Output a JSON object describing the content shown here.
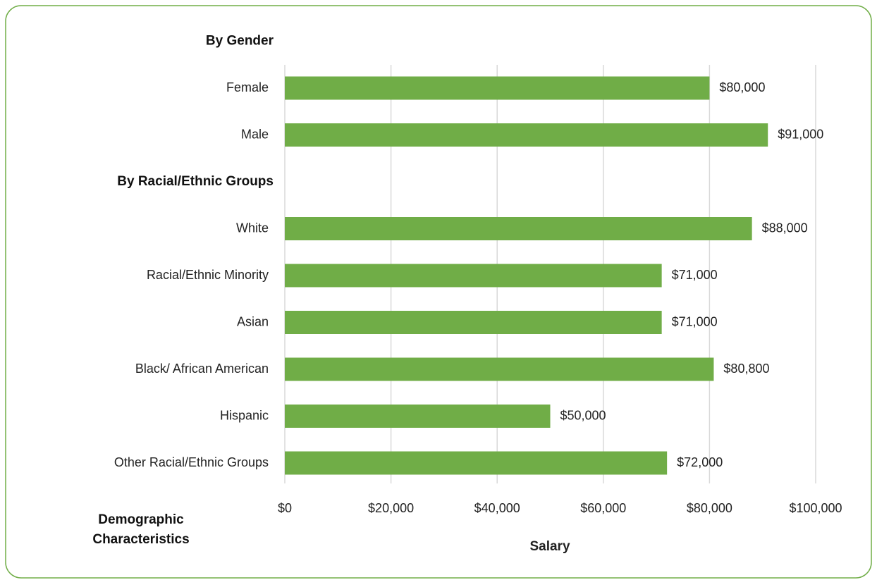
{
  "chart_data": {
    "type": "barh",
    "x_label": "Salary",
    "y_label": "Demographic Characteristics",
    "categories": [
      "By Gender",
      "Female",
      "Male",
      "By Racial/Ethnic Groups",
      "White",
      "Racial/Ethnic Minority",
      "Asian",
      "Black/ African American",
      "Hispanic",
      "Other Racial/Ethnic Groups"
    ],
    "values": [
      null,
      80000,
      91000,
      null,
      88000,
      71000,
      71000,
      80800,
      50000,
      72000
    ],
    "value_labels": [
      null,
      "$80,000",
      "$91,000",
      null,
      "$88,000",
      "$71,000",
      "$71,000",
      "$80,800",
      "$50,000",
      "$72,000"
    ],
    "color": "#70ad47",
    "xlim": [
      0,
      100000
    ],
    "xticks": [
      {
        "value": 0,
        "label": "$0"
      },
      {
        "value": 20000,
        "label": "$20,000"
      },
      {
        "value": 40000,
        "label": "$40,000"
      },
      {
        "value": 60000,
        "label": "$60,000"
      },
      {
        "value": 80000,
        "label": "$80,000"
      },
      {
        "value": 100000,
        "label": "$100,000"
      }
    ],
    "grid": true
  }
}
